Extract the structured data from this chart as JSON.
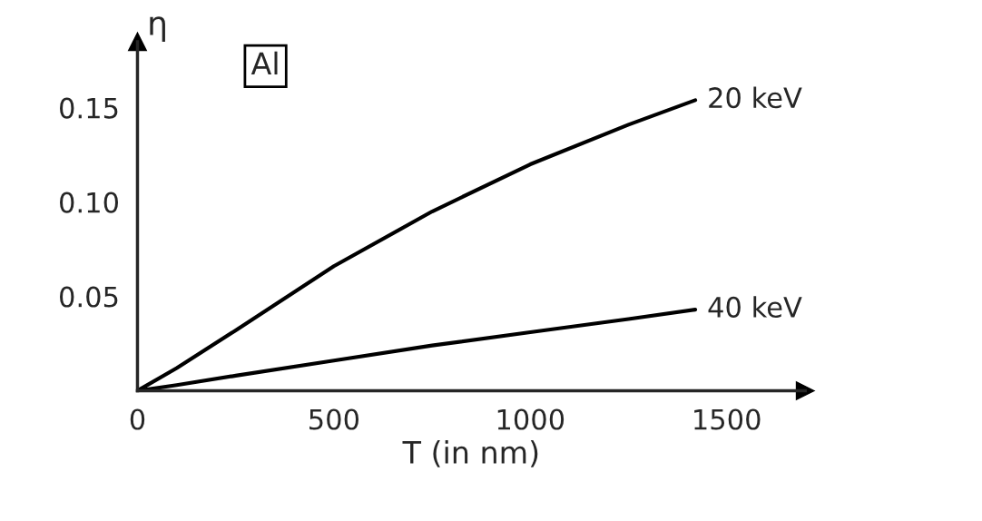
{
  "chart_data": {
    "type": "line",
    "xlabel": "T (in nm)",
    "ylabel": "η",
    "annotations": [
      "Al"
    ],
    "x": [
      0,
      100,
      250,
      500,
      750,
      1000,
      1250,
      1420
    ],
    "series": [
      {
        "name": "20 keV",
        "color": "#000000",
        "values": [
          0,
          0.012,
          0.032,
          0.066,
          0.095,
          0.12,
          0.141,
          0.154
        ]
      },
      {
        "name": "40 keV",
        "color": "#000000",
        "values": [
          0,
          0.003,
          0.008,
          0.016,
          0.024,
          0.031,
          0.038,
          0.043
        ]
      }
    ],
    "xlim": [
      0,
      1700
    ],
    "ylim": [
      0,
      0.185
    ],
    "xticks": [
      0,
      500,
      1000,
      1500
    ],
    "yticks": [
      {
        "value": 0.05,
        "label": "0.05"
      },
      {
        "value": 0.1,
        "label": "0.10"
      },
      {
        "value": 0.15,
        "label": "0.15"
      }
    ],
    "grid": false,
    "legend": false,
    "marker": "none",
    "line_style": "solid"
  }
}
